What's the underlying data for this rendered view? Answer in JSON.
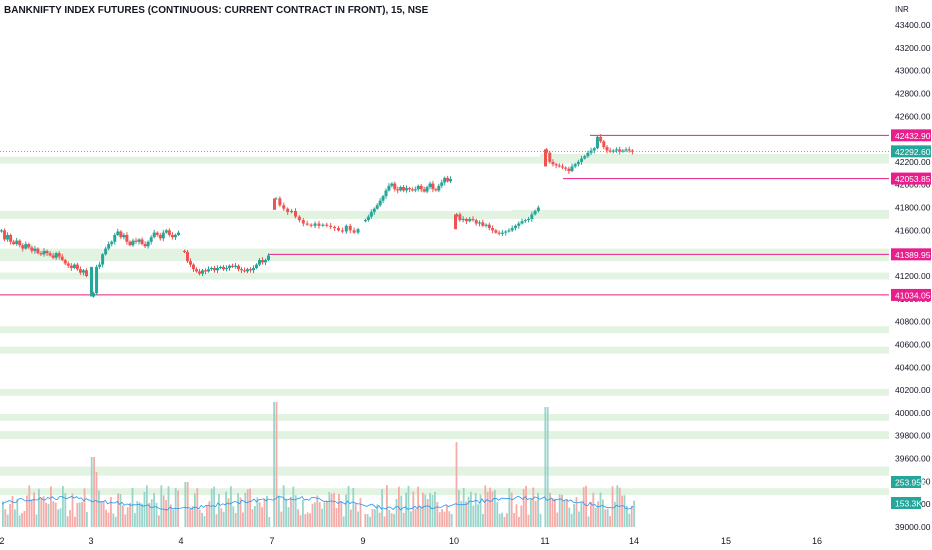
{
  "header": {
    "title": "BANKNIFTY INDEX FUTURES (CONTINUOUS: CURRENT CONTRACT IN FRONT), 15, NSE"
  },
  "chart_data": {
    "type": "candlestick",
    "currency_label": "INR",
    "y_axis_ticks": [
      43400,
      43200,
      43000,
      42800,
      42600,
      42200,
      42000,
      41800,
      41600,
      41400,
      41200,
      41000,
      40800,
      40600,
      40400,
      40200,
      40000,
      39800,
      39600,
      39400,
      39200,
      39000
    ],
    "y_tick_labels": [
      "43400.00",
      "43200.00",
      "43000.00",
      "42800.00",
      "42600.00",
      "42200.00",
      "42000.00",
      "41800.00",
      "41600.00",
      "41400.00",
      "41200.00",
      "41000.00",
      "40800.00",
      "40600.00",
      "40400.00",
      "40200.00",
      "40000.00",
      "39800.00",
      "39600.00",
      "39400.00",
      "39200.00",
      "39000.00"
    ],
    "x_tick_labels": [
      "2",
      "3",
      "4",
      "7",
      "9",
      "10",
      "11",
      "14",
      "15",
      "16"
    ],
    "price_labels": [
      {
        "label": "42432.90",
        "value": 42432.9,
        "color": "#e91e8c",
        "line": true
      },
      {
        "label": "42292.60",
        "value": 42292.6,
        "color": "#26a69a",
        "line": false
      },
      {
        "label": "42053.85",
        "value": 42053.85,
        "color": "#e91e8c",
        "line": true
      },
      {
        "label": "41389.95",
        "value": 41389.95,
        "color": "#e91e8c",
        "line": true
      },
      {
        "label": "41034.05",
        "value": 41034.05,
        "color": "#e91e8c",
        "line": true
      }
    ],
    "volume_labels": [
      {
        "label": "253.95K",
        "color": "#26a69a"
      },
      {
        "label": "153.3K",
        "color": "#26a69a"
      }
    ],
    "zones": [
      [
        42185,
        42245
      ],
      [
        41700,
        41770
      ],
      [
        41330,
        41440
      ],
      [
        41170,
        41230
      ],
      [
        40700,
        40760
      ],
      [
        40520,
        40580
      ],
      [
        40150,
        40210
      ],
      [
        39930,
        39990
      ],
      [
        39770,
        39840
      ],
      [
        39450,
        39530
      ],
      [
        39280,
        39340
      ]
    ],
    "zones_partial": [
      [
        42250,
        42270
      ],
      [
        41720,
        41780
      ]
    ],
    "colors": {
      "up": "#26a69a",
      "down": "#ef5350",
      "zone": "#e3f3e1",
      "level": "#e91e8c",
      "ma": "#2196f3"
    },
    "sessions": [
      {
        "o": 41590,
        "c": 41480,
        "path": [
          41600,
          41520,
          41560,
          41500,
          41480,
          41510,
          41470,
          41440,
          41480,
          41450,
          41420,
          41440,
          41400,
          41390,
          41420,
          41400,
          41380,
          41360,
          41400,
          41370,
          41340,
          41310,
          41290,
          41270,
          41300,
          41260,
          41230,
          41250,
          41200
        ]
      },
      {
        "o": 41020,
        "c": 41560,
        "path": [
          41050,
          41280,
          41300,
          41390,
          41440,
          41480,
          41500,
          41560,
          41590,
          41540,
          41560,
          41500,
          41470,
          41510,
          41500,
          41520,
          41480,
          41460,
          41500,
          41540,
          41580,
          41560,
          41530,
          41580,
          41600,
          41560,
          41540,
          41560,
          41580
        ]
      },
      {
        "o": 41420,
        "c": 41300,
        "path": [
          41410,
          41330,
          41300,
          41260,
          41240,
          41220,
          41250,
          41240,
          41260,
          41270,
          41250,
          41270,
          41280,
          41260,
          41270,
          41290,
          41280,
          41290,
          41260,
          41250,
          41240,
          41260,
          41250,
          41270,
          41300,
          41340,
          41320,
          41340,
          41380
        ]
      },
      {
        "o": 41880,
        "c": 41610,
        "path": [
          41880,
          41820,
          41790,
          41760,
          41770,
          41720,
          41690,
          41660,
          41650,
          41640,
          41660,
          41640,
          41650,
          41640,
          41630,
          41620,
          41600,
          41590,
          41640,
          41600,
          41580,
          41610
        ]
      },
      {
        "o": 41680,
        "c": 41960,
        "path": [
          41690,
          41720,
          41760,
          41790,
          41820,
          41860,
          41900,
          41950,
          41990,
          42010,
          41960,
          41950,
          41980,
          41950,
          41970,
          41960,
          41950,
          41960,
          41990,
          41960,
          41940,
          41980,
          42010,
          41960,
          41950,
          41990,
          42020,
          42060,
          42030,
          42050
        ]
      },
      {
        "o": 41720,
        "c": 41610,
        "path": [
          41740,
          41690,
          41700,
          41680,
          41700,
          41690,
          41660,
          41670,
          41640,
          41650,
          41620,
          41600,
          41580,
          41570,
          41580,
          41590,
          41600,
          41620,
          41640,
          41660,
          41680,
          41690,
          41700,
          41740,
          41770,
          41800
        ]
      },
      {
        "o": 42310,
        "c": 42220,
        "path": [
          42280,
          42200,
          42180,
          42170,
          42160,
          42150,
          42140,
          42120,
          42160,
          42180,
          42200,
          42230,
          42250,
          42280,
          42300,
          42320,
          42420,
          42380,
          42330,
          42300,
          42290,
          42300,
          42310,
          42290,
          42300,
          42310,
          42300,
          42290
        ]
      }
    ],
    "volume": {
      "count": 260,
      "max_ref": 1000
    }
  }
}
